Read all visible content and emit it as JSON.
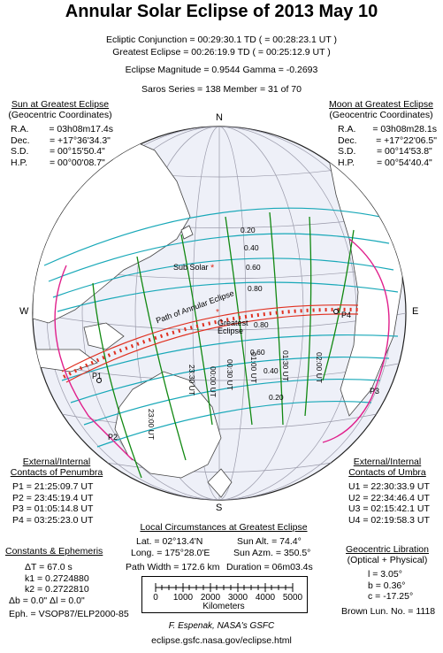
{
  "title": "Annular Solar Eclipse of  2013 May 10",
  "header": {
    "conjunction": "Ecliptic Conjunction = 00:29:30.1 TD   ( = 00:28:23.1 UT )",
    "greatest": "Greatest Eclipse = 00:26:19.9 TD   ( = 00:25:12.9 UT )",
    "magnitude": "Eclipse Magnitude = 0.9544      Gamma = -0.2693",
    "saros": "Saros Series = 138        Member = 31 of 70"
  },
  "sun": {
    "heading1": "Sun at Greatest Eclipse",
    "heading2": "(Geocentric Coordinates)",
    "rows": [
      {
        "k": "R.A.",
        "v": "= 03h08m17.4s"
      },
      {
        "k": "Dec.",
        "v": "= +17°36'34.3\""
      },
      {
        "k": "S.D.",
        "v": "= 00°15'50.4\""
      },
      {
        "k": "H.P.",
        "v": "= 00°00'08.7\""
      }
    ]
  },
  "moon": {
    "heading1": "Moon at Greatest Eclipse",
    "heading2": "(Geocentric Coordinates)",
    "rows": [
      {
        "k": "R.A.",
        "v": "= 03h08m28.1s"
      },
      {
        "k": "Dec.",
        "v": "= +17°22'06.5\""
      },
      {
        "k": "S.D.",
        "v": "= 00°14'53.8\""
      },
      {
        "k": "H.P.",
        "v": "= 00°54'40.4\""
      }
    ]
  },
  "compass": {
    "n": "N",
    "s": "S",
    "e": "E",
    "w": "W"
  },
  "map_labels": {
    "sub_solar": "Sub Solar",
    "path": "Path of Annular Eclipse",
    "greatest": "Greatest Eclipse",
    "p1": "P1",
    "p2": "P2",
    "p3": "P3",
    "p4": "P4"
  },
  "magnitudes": [
    "0.20",
    "0.40",
    "0.60",
    "0.80",
    "0.80",
    "0.60",
    "0.40",
    "0.20"
  ],
  "time_labels": [
    "23:00 UT",
    "23:30 UT",
    "00:00 UT",
    "00:30 UT",
    "01:00 UT",
    "01:30 UT",
    "02:00 UT"
  ],
  "penumbra": {
    "heading1": "External/Internal",
    "heading2": "Contacts of Penumbra",
    "rows": [
      "P1 = 21:25:09.7 UT",
      "P2 = 23:45:19.4 UT",
      "P3 = 01:05:14.8 UT",
      "P4 = 03:25:23.0 UT"
    ]
  },
  "umbra": {
    "heading1": "External/Internal",
    "heading2": "Contacts of Umbra",
    "rows": [
      "U1 = 22:30:33.9 UT",
      "U2 = 22:34:46.4 UT",
      "U3 = 02:15:42.1 UT",
      "U4 = 02:19:58.3 UT"
    ]
  },
  "constants": {
    "heading": "Constants & Ephemeris",
    "rows": [
      "ΔT =    67.0 s",
      "k1 = 0.2724880",
      "k2 = 0.2722810",
      "Δb =   0.0\"    Δl =   0.0\""
    ],
    "eph": "Eph. = VSOP87/ELP2000-85"
  },
  "local": {
    "heading": "Local Circumstances at Greatest Eclipse",
    "lat": "Lat. =  02°13.4'N",
    "long": "Long. = 175°28.0'E",
    "alt": "Sun Alt. =   74.4°",
    "azm": "Sun Azm. =  350.5°",
    "width": "Path Width = 172.6 km",
    "duration": "Duration = 06m03.4s"
  },
  "scale": {
    "ticks": [
      "0",
      "1000",
      "2000",
      "3000",
      "4000",
      "5000"
    ],
    "unit": "Kilometers"
  },
  "libration": {
    "heading1": "Geocentric Libration",
    "heading2": "(Optical + Physical)",
    "rows": [
      "l =    3.05°",
      "b =    0.36°",
      "c =  -17.25°"
    ],
    "brown": "Brown Lun. No. = 1118"
  },
  "credit": {
    "author": "F. Espenak, NASA's GSFC",
    "url": "eclipse.gsfc.nasa.gov/eclipse.html"
  },
  "colors": {
    "path": "#e03020",
    "penumbra": "#e0208c",
    "magnitude": "#18a8b8",
    "time": "#118811",
    "globe": "#eef0f8"
  }
}
